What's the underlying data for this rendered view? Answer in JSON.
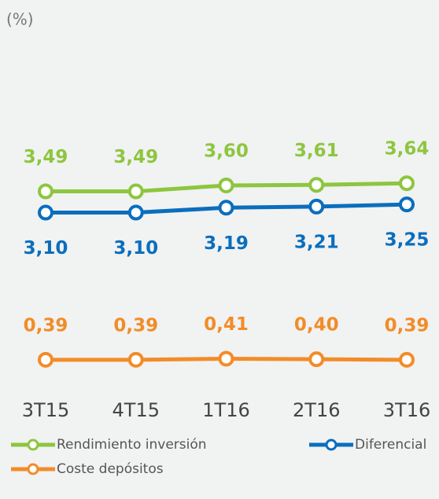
{
  "chart_data": {
    "type": "line",
    "unit_label": "(%)",
    "categories": [
      "3T15",
      "4T15",
      "1T16",
      "2T16",
      "3T16"
    ],
    "ylim": [
      0.2,
      4.8
    ],
    "series": [
      {
        "name": "Rendimiento inversión",
        "color": "#8dc63f",
        "values": [
          3.49,
          3.49,
          3.6,
          3.61,
          3.64
        ],
        "value_labels": [
          "3,49",
          "3,49",
          "3,60",
          "3,61",
          "3,64"
        ],
        "label_position": "above"
      },
      {
        "name": "Diferencial",
        "color": "#0a6ebd",
        "values": [
          3.1,
          3.1,
          3.19,
          3.21,
          3.25
        ],
        "value_labels": [
          "3,10",
          "3,10",
          "3,19",
          "3,21",
          "3,25"
        ],
        "label_position": "below"
      },
      {
        "name": "Coste depósitos",
        "color": "#f28c28",
        "values": [
          0.39,
          0.39,
          0.41,
          0.4,
          0.39
        ],
        "value_labels": [
          "0,39",
          "0,39",
          "0,41",
          "0,40",
          "0,39"
        ],
        "label_position": "above"
      }
    ]
  }
}
